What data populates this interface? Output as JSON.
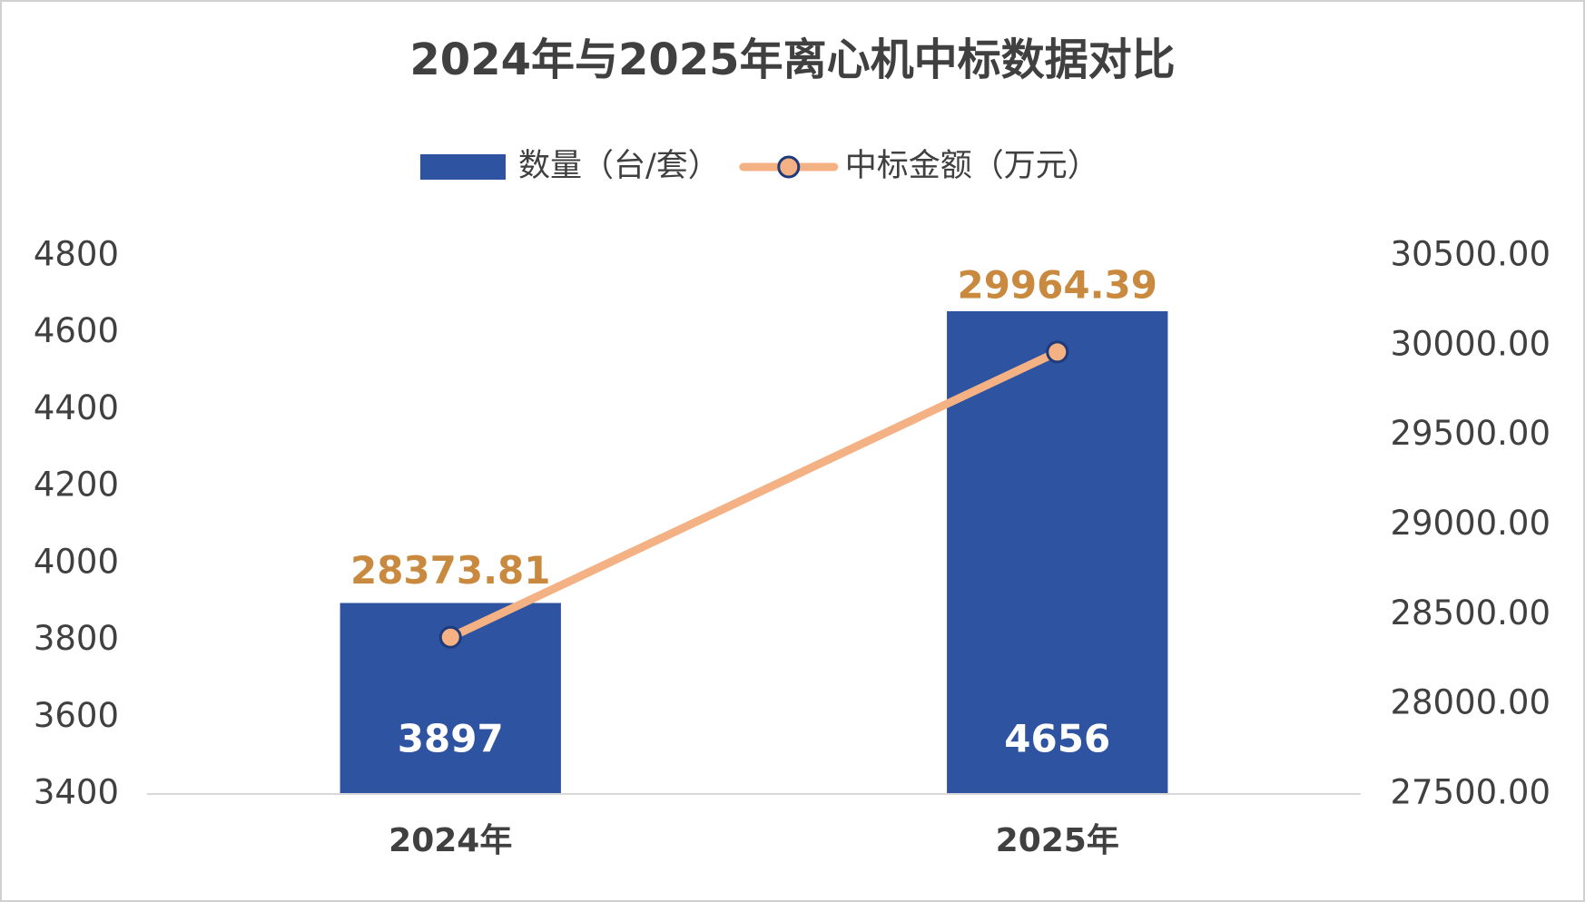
{
  "chart_data": {
    "type": "bar",
    "title": "2024年与2025年离心机中标数据对比",
    "categories": [
      "2024年",
      "2025年"
    ],
    "series": [
      {
        "name": "数量（台/套）",
        "type": "bar",
        "color": "#2e53a0",
        "values": [
          3897,
          4656
        ]
      },
      {
        "name": "中标金额（万元）",
        "type": "line",
        "axis": "y2",
        "color": "#f4b183",
        "values": [
          28373.81,
          29964.39
        ]
      }
    ],
    "ylim": [
      3400,
      4800
    ],
    "yticks": [
      3400,
      3600,
      3800,
      4000,
      4200,
      4400,
      4600,
      4800
    ],
    "y2lim": [
      27500,
      30500
    ],
    "y2ticks": [
      {
        "value": 27500,
        "label": "27500.00"
      },
      {
        "value": 28000,
        "label": "28000.00"
      },
      {
        "value": 28500,
        "label": "28500.00"
      },
      {
        "value": 29000,
        "label": "29000.00"
      },
      {
        "value": 29500,
        "label": "29500.00"
      },
      {
        "value": 30000,
        "label": "30000.00"
      },
      {
        "value": 30500,
        "label": "30500.00"
      }
    ],
    "legend": "top"
  }
}
